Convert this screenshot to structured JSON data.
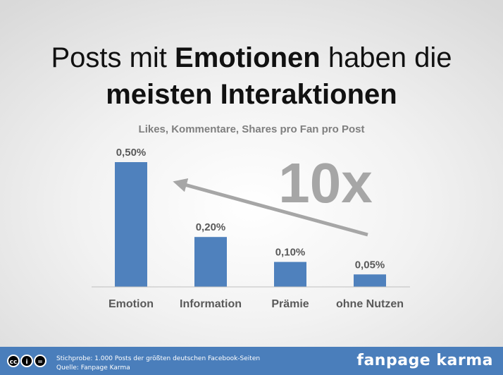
{
  "title": {
    "line1_prefix": "Posts mit ",
    "line1_bold": "Emotionen",
    "line1_suffix": " haben die",
    "line2": "meisten Interaktionen"
  },
  "chart_data": {
    "type": "bar",
    "title": "Likes, Kommentare, Shares pro Fan pro Post",
    "categories": [
      "Emotion",
      "Information",
      "Prämie",
      "ohne Nutzen"
    ],
    "values": [
      0.5,
      0.2,
      0.1,
      0.05
    ],
    "data_labels": [
      "0,50%",
      "0,20%",
      "0,10%",
      "0,05%"
    ],
    "unit": "%",
    "ylim": [
      0,
      0.5
    ],
    "bar_color": "#4f81bd",
    "grid": false,
    "annotation": {
      "text": "10x",
      "arrow": "from ohne Nutzen toward Emotion",
      "color": "#a6a6a6"
    }
  },
  "footer": {
    "license_icons": [
      "cc",
      "by",
      "nd"
    ],
    "source_line1": "Stichprobe: 1.000 Posts der größten deutschen Facebook-Seiten",
    "source_line2": "Quelle: Fanpage Karma",
    "brand": "fanpage karma",
    "color": "#4a7ebb"
  }
}
